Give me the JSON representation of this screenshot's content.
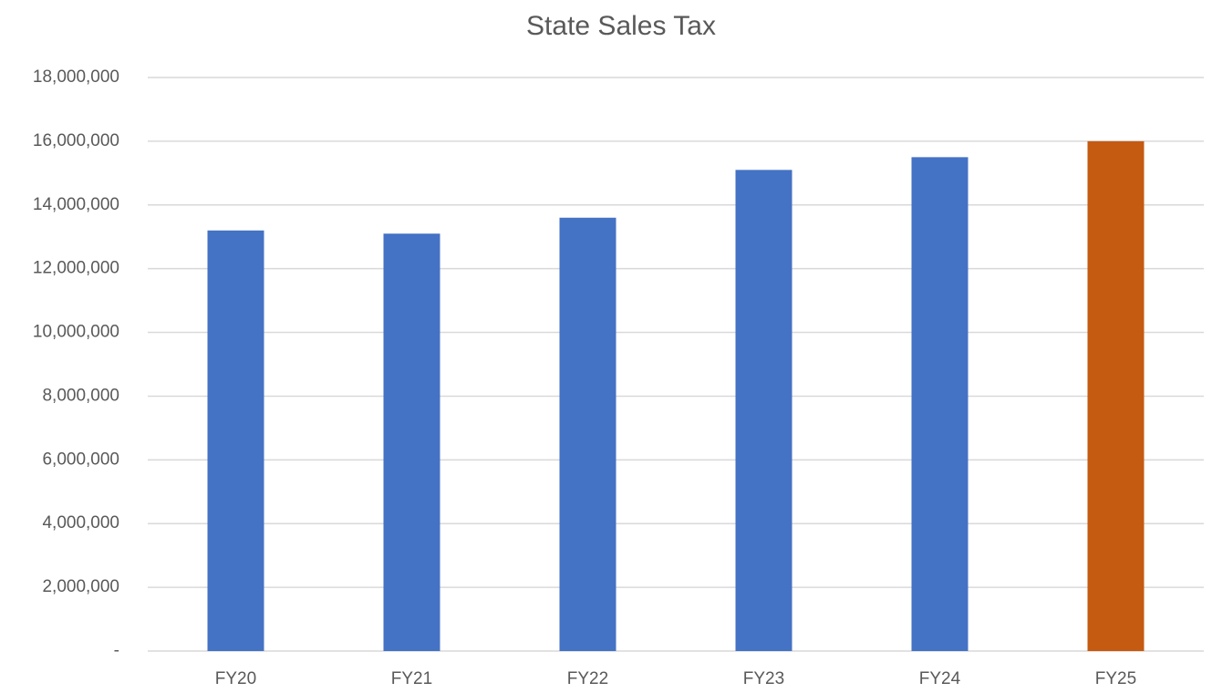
{
  "chart_data": {
    "type": "bar",
    "title": "State Sales Tax",
    "categories": [
      "FY20",
      "FY21",
      "FY22",
      "FY23",
      "FY24",
      "FY25"
    ],
    "values": [
      13200000,
      13100000,
      13600000,
      15100000,
      15500000,
      16000000
    ],
    "colors": [
      "#4472c4",
      "#4472c4",
      "#4472c4",
      "#4472c4",
      "#4472c4",
      "#c55a11"
    ],
    "ylim": [
      0,
      18000000
    ],
    "yticks": [
      {
        "value": 0,
        "label": "-"
      },
      {
        "value": 2000000,
        "label": "2,000,000"
      },
      {
        "value": 4000000,
        "label": "4,000,000"
      },
      {
        "value": 6000000,
        "label": "6,000,000"
      },
      {
        "value": 8000000,
        "label": "8,000,000"
      },
      {
        "value": 10000000,
        "label": "10,000,000"
      },
      {
        "value": 12000000,
        "label": "12,000,000"
      },
      {
        "value": 14000000,
        "label": "14,000,000"
      },
      {
        "value": 16000000,
        "label": "16,000,000"
      },
      {
        "value": 18000000,
        "label": "18,000,000"
      }
    ],
    "grid": true
  }
}
